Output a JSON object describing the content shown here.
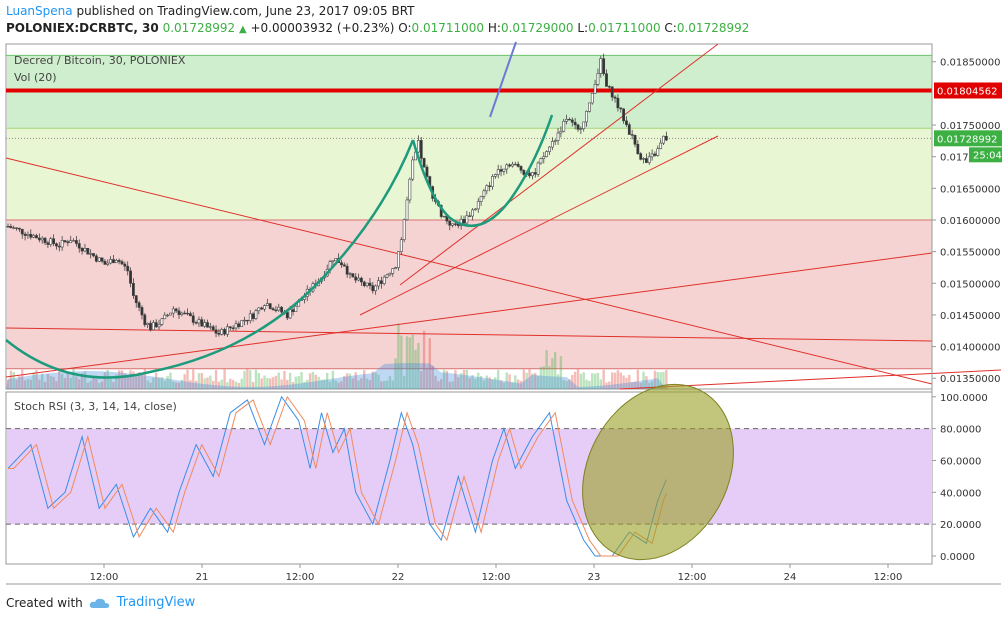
{
  "header": {
    "publisher": "LuanSpena",
    "published_text": "published on TradingView.com, June 23, 2017 09:05 BRT",
    "symbol": "POLONIEX:DCRBTC, 30",
    "last": "0.01728992",
    "change": "+0.00003932 (+0.23%)",
    "o_label": "O:",
    "o": "0.01711000",
    "h_label": "H:",
    "h": "0.01729000",
    "l_label": "L:",
    "l": "0.01711000",
    "c_label": "C:",
    "c": "0.01728992"
  },
  "legend": {
    "instrument": "Decred / Bitcoin, 30, POLONIEX",
    "volume": "Vol (20)",
    "oscillator": "Stoch RSI (3, 3, 14, 14, close)"
  },
  "price_badge": {
    "value": "0.01728992",
    "timer": "25:04",
    "color": "#3cb043"
  },
  "resistance_badge": {
    "value": "0.01804562",
    "color": "#e00000"
  },
  "footer": {
    "created_with": "Created with",
    "brand": "TradingView"
  },
  "colors": {
    "up": "#3cb043",
    "down": "#e34234",
    "cup": "#1e9a7c",
    "trend": "#e0302a",
    "zone_green": "#cfeecd",
    "zone_lightgreen": "#e9f6d4",
    "zone_red": "#f5d3d3",
    "rsi_band": "#e6cdf7",
    "ellipse": "#9aa025"
  },
  "chart_data": [
    {
      "type": "candlestick",
      "title": "Decred / Bitcoin, 30, POLONIEX",
      "x_tick_labels": [
        "12:00",
        "21",
        "12:00",
        "22",
        "12:00",
        "23",
        "12:00",
        "24",
        "12:00"
      ],
      "y_tick_labels": [
        "0.01850000",
        "0.01750000",
        "0.01700000",
        "0.01650000",
        "0.01600000",
        "0.01550000",
        "0.01500000",
        "0.01450000",
        "0.01400000",
        "0.01350000"
      ],
      "ylim": [
        0.01333,
        0.01878
      ],
      "close_path": [
        [
          0,
          0.0159
        ],
        [
          6,
          0.0158
        ],
        [
          12,
          0.0157
        ],
        [
          18,
          0.0156
        ],
        [
          22,
          0.0157
        ],
        [
          28,
          0.0155
        ],
        [
          34,
          0.0153
        ],
        [
          38,
          0.0154
        ],
        [
          42,
          0.0152
        ],
        [
          44,
          0.0148
        ],
        [
          46,
          0.0146
        ],
        [
          48,
          0.0144
        ],
        [
          50,
          0.0143
        ],
        [
          54,
          0.0144
        ],
        [
          58,
          0.0146
        ],
        [
          62,
          0.0145
        ],
        [
          66,
          0.0144
        ],
        [
          70,
          0.0143
        ],
        [
          74,
          0.0142
        ],
        [
          78,
          0.0143
        ],
        [
          82,
          0.0144
        ],
        [
          86,
          0.0145
        ],
        [
          90,
          0.0147
        ],
        [
          94,
          0.0146
        ],
        [
          98,
          0.0145
        ],
        [
          102,
          0.0147
        ],
        [
          106,
          0.0149
        ],
        [
          110,
          0.0151
        ],
        [
          114,
          0.0154
        ],
        [
          118,
          0.0153
        ],
        [
          120,
          0.0151
        ],
        [
          124,
          0.015
        ],
        [
          128,
          0.0149
        ],
        [
          132,
          0.0151
        ],
        [
          136,
          0.0153
        ],
        [
          138,
          0.0157
        ],
        [
          140,
          0.0163
        ],
        [
          142,
          0.0169
        ],
        [
          144,
          0.0172
        ],
        [
          146,
          0.0168
        ],
        [
          148,
          0.0165
        ],
        [
          150,
          0.0163
        ],
        [
          152,
          0.0161
        ],
        [
          156,
          0.0159
        ],
        [
          160,
          0.016
        ],
        [
          164,
          0.0162
        ],
        [
          168,
          0.0165
        ],
        [
          172,
          0.0168
        ],
        [
          176,
          0.0169
        ],
        [
          180,
          0.0168
        ],
        [
          184,
          0.0167
        ],
        [
          188,
          0.017
        ],
        [
          192,
          0.0173
        ],
        [
          196,
          0.0176
        ],
        [
          200,
          0.0174
        ],
        [
          204,
          0.0178
        ],
        [
          206,
          0.0182
        ],
        [
          208,
          0.0185
        ],
        [
          210,
          0.0181
        ],
        [
          212,
          0.018
        ],
        [
          214,
          0.0178
        ],
        [
          216,
          0.0176
        ],
        [
          218,
          0.0174
        ],
        [
          220,
          0.0172
        ],
        [
          222,
          0.017
        ],
        [
          224,
          0.0169
        ],
        [
          226,
          0.017
        ],
        [
          228,
          0.0171
        ],
        [
          230,
          0.01729
        ]
      ],
      "horizontal_levels": [
        {
          "value": 0.0186,
          "kind": "zone-top"
        },
        {
          "value": 0.01804562,
          "kind": "resistance"
        },
        {
          "value": 0.01745,
          "kind": "zone"
        },
        {
          "value": 0.016,
          "kind": "zone"
        },
        {
          "value": 0.01365,
          "kind": "zone-bottom"
        }
      ]
    },
    {
      "type": "line",
      "title": "Stoch RSI (3, 3, 14, 14, close)",
      "y_tick_labels": [
        "100.0000",
        "80.0000",
        "60.0000",
        "40.0000",
        "20.0000",
        "0.0000"
      ],
      "ylim": [
        -5,
        103
      ],
      "band": [
        20,
        80
      ]
    }
  ]
}
